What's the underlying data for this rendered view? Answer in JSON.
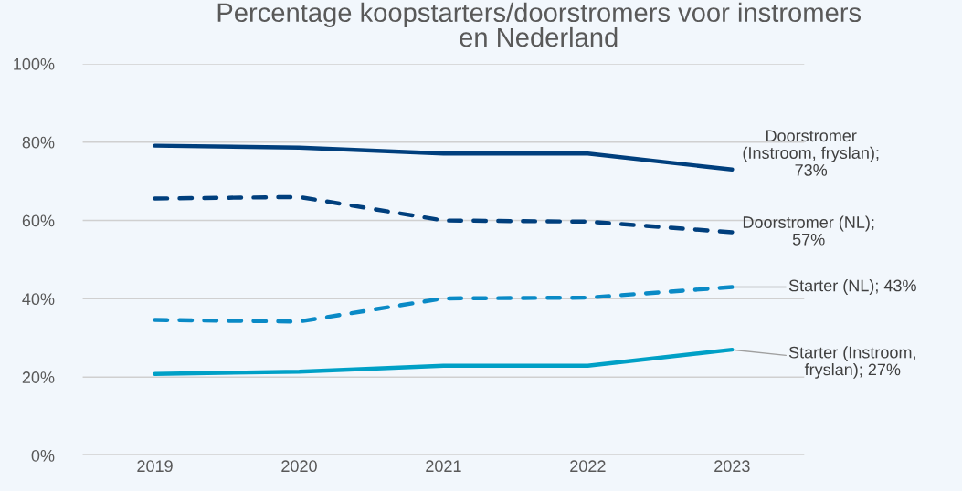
{
  "chart_data": {
    "type": "line",
    "title": "Percentage koopstarters/doorstromers voor instromers\nen Nederland",
    "categories": [
      "2019",
      "2020",
      "2021",
      "2022",
      "2023"
    ],
    "series": [
      {
        "color": "#003f7d",
        "line_style": "solid",
        "values": [
          79.1,
          78.6,
          77.1,
          77.1,
          73
        ]
      },
      {
        "color": "#003f7d",
        "line_style": "dashed",
        "values": [
          65.6,
          66.0,
          60.0,
          59.7,
          57
        ]
      },
      {
        "color": "#0a8ac6",
        "line_style": "dashed",
        "values": [
          34.6,
          34.2,
          40.1,
          40.3,
          43
        ]
      },
      {
        "color": "#00a0c6",
        "line_style": "solid",
        "values": [
          20.8,
          21.4,
          22.9,
          22.9,
          27
        ]
      }
    ],
    "ylim": [
      0,
      100
    ],
    "yticks": [
      {
        "value": 0,
        "label": "0%"
      },
      {
        "value": 20,
        "label": "20%"
      },
      {
        "value": 40,
        "label": "40%"
      },
      {
        "value": 60,
        "label": "60%"
      },
      {
        "value": 80,
        "label": "80%"
      },
      {
        "value": 100,
        "label": "100%"
      }
    ],
    "grid": "y",
    "marker": "none",
    "annotations": [
      {
        "text": "Doorstromer\n(Instroom, fryslan);\n73%",
        "x": "2023",
        "y": 73
      },
      {
        "text": "Doorstromer (NL);\n57%",
        "x": "2023",
        "y": 57
      },
      {
        "text": "Starter (NL); 43%",
        "x": "2023",
        "y": 43
      },
      {
        "text": "Starter (Instroom,\nfryslan); 27%",
        "x": "2023",
        "y": 27
      }
    ]
  }
}
